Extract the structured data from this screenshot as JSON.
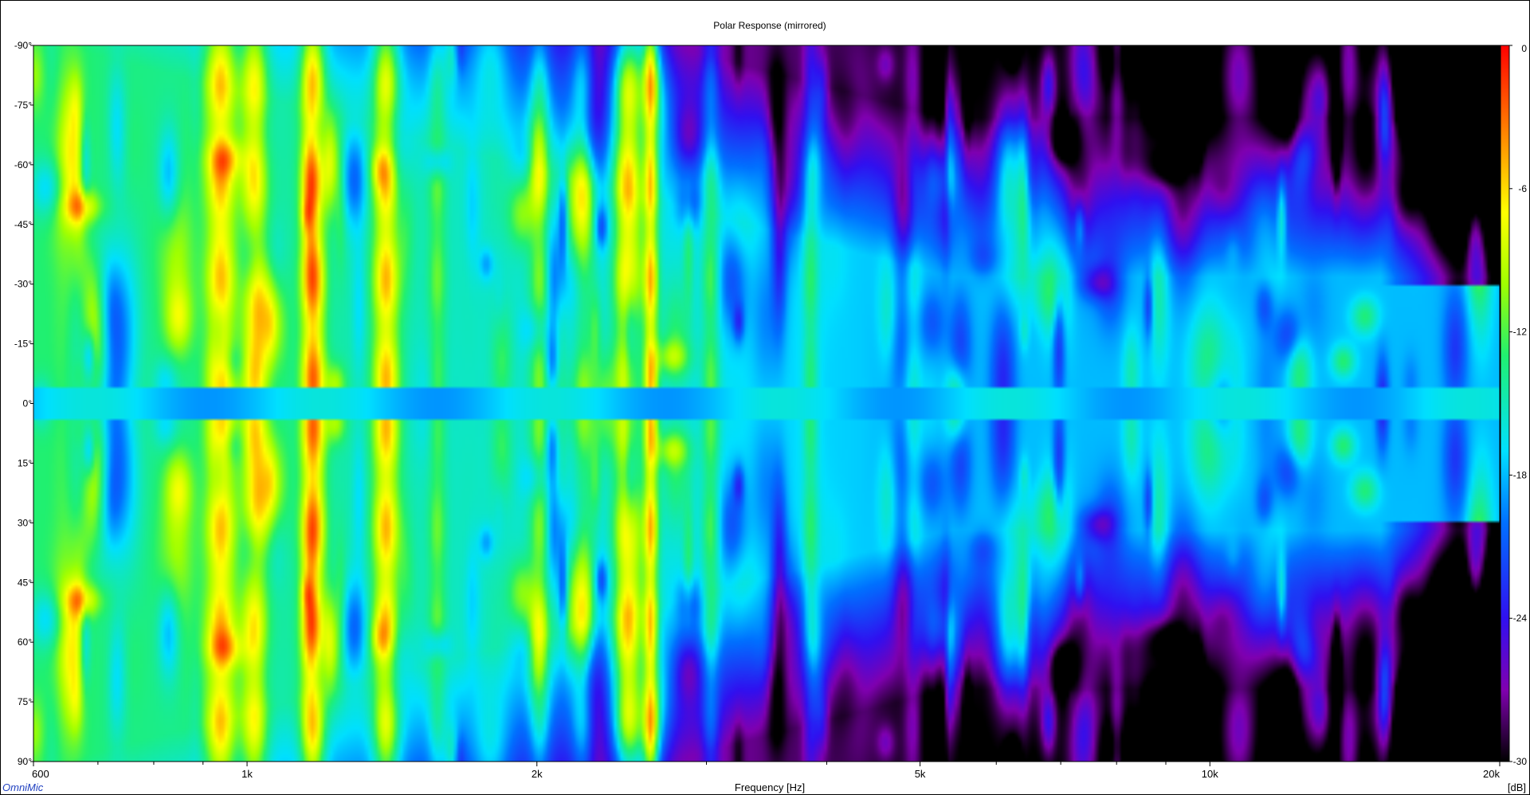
{
  "chart_data": {
    "type": "heatmap",
    "title": "Polar Response (mirrored)",
    "xlabel": "Frequency [Hz]",
    "ylabel": "",
    "x_scale": "log",
    "xlim": [
      600,
      20000
    ],
    "ylim": [
      -90,
      90
    ],
    "x_ticks": [
      {
        "value": 600,
        "label": "600"
      },
      {
        "value": 1000,
        "label": "1k"
      },
      {
        "value": 2000,
        "label": "2k"
      },
      {
        "value": 5000,
        "label": "5k"
      },
      {
        "value": 10000,
        "label": "10k"
      },
      {
        "value": 20000,
        "label": "20k"
      }
    ],
    "y_ticks": [
      {
        "value": -90,
        "label": "-90°"
      },
      {
        "value": -75,
        "label": "-75°"
      },
      {
        "value": -60,
        "label": "-60°"
      },
      {
        "value": -45,
        "label": "-45°"
      },
      {
        "value": -30,
        "label": "-30°"
      },
      {
        "value": -15,
        "label": "-15°"
      },
      {
        "value": 0,
        "label": "0°"
      },
      {
        "value": 15,
        "label": "15°"
      },
      {
        "value": 30,
        "label": "30°"
      },
      {
        "value": 45,
        "label": "45°"
      },
      {
        "value": 60,
        "label": "60°"
      },
      {
        "value": 75,
        "label": "75°"
      },
      {
        "value": 90,
        "label": "90°"
      }
    ],
    "colorbar": {
      "unit_label": "[dB]",
      "range": [
        -30,
        0
      ],
      "ticks": [
        {
          "value": 0,
          "label": "0"
        },
        {
          "value": -6,
          "label": "-6"
        },
        {
          "value": -12,
          "label": "-12"
        },
        {
          "value": -18,
          "label": "-18"
        },
        {
          "value": -24,
          "label": "-24"
        },
        {
          "value": -30,
          "label": "-30"
        }
      ],
      "stops": [
        {
          "value": -30,
          "color": "#000000"
        },
        {
          "value": -27,
          "color": "#8000b0"
        },
        {
          "value": -24,
          "color": "#3010f0"
        },
        {
          "value": -20,
          "color": "#0070ff"
        },
        {
          "value": -17,
          "color": "#00e0ff"
        },
        {
          "value": -13,
          "color": "#20f070"
        },
        {
          "value": -10,
          "color": "#a0ff00"
        },
        {
          "value": -7,
          "color": "#ffff00"
        },
        {
          "value": -4,
          "color": "#ff9000"
        },
        {
          "value": 0,
          "color": "#ff0000"
        }
      ]
    },
    "legend": "right-colorbar",
    "grid": false
  },
  "brand": "OmniMic",
  "colors": {
    "brand_text": "#2040c0",
    "frame": "#000000",
    "background": "#ffffff"
  }
}
